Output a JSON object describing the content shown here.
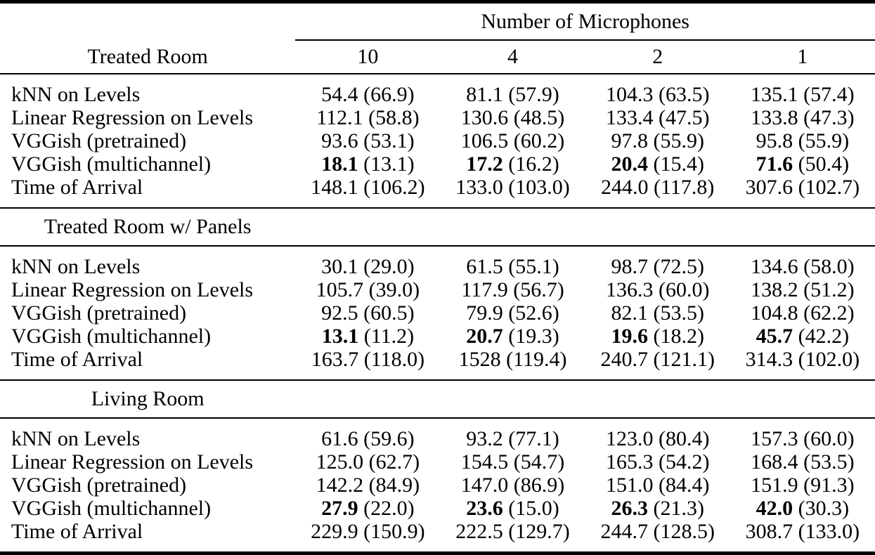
{
  "page": {
    "background_color": "#ffffff",
    "text_color": "#000000"
  },
  "table": {
    "group_header": "Number of Microphones",
    "corner_header": "Treated Room",
    "mic_columns": [
      "10",
      "4",
      "2",
      "1"
    ],
    "value_format": "mean (std)",
    "sections": [
      {
        "title": null,
        "rows": [
          {
            "method": "kNN on Levels",
            "bold": false,
            "cells": [
              {
                "mean": "54.4",
                "std": "66.9"
              },
              {
                "mean": "81.1",
                "std": "57.9"
              },
              {
                "mean": "104.3",
                "std": "63.5"
              },
              {
                "mean": "135.1",
                "std": "57.4"
              }
            ]
          },
          {
            "method": "Linear Regression on Levels",
            "bold": false,
            "cells": [
              {
                "mean": "112.1",
                "std": "58.8"
              },
              {
                "mean": "130.6",
                "std": "48.5"
              },
              {
                "mean": "133.4",
                "std": "47.5"
              },
              {
                "mean": "133.8",
                "std": "47.3"
              }
            ]
          },
          {
            "method": "VGGish (pretrained)",
            "bold": false,
            "cells": [
              {
                "mean": "93.6",
                "std": "53.1"
              },
              {
                "mean": "106.5",
                "std": "60.2"
              },
              {
                "mean": "97.8",
                "std": "55.9"
              },
              {
                "mean": "95.8",
                "std": "55.9"
              }
            ]
          },
          {
            "method": "VGGish (multichannel)",
            "bold": true,
            "cells": [
              {
                "mean": "18.1",
                "std": "13.1"
              },
              {
                "mean": "17.2",
                "std": "16.2"
              },
              {
                "mean": "20.4",
                "std": "15.4"
              },
              {
                "mean": "71.6",
                "std": "50.4"
              }
            ]
          },
          {
            "method": "Time of Arrival",
            "bold": false,
            "cells": [
              {
                "mean": "148.1",
                "std": "106.2"
              },
              {
                "mean": "133.0",
                "std": "103.0"
              },
              {
                "mean": "244.0",
                "std": "117.8"
              },
              {
                "mean": "307.6",
                "std": "102.7"
              }
            ]
          }
        ]
      },
      {
        "title": "Treated Room w/ Panels",
        "rows": [
          {
            "method": "kNN on Levels",
            "bold": false,
            "cells": [
              {
                "mean": "30.1",
                "std": "29.0"
              },
              {
                "mean": "61.5",
                "std": "55.1"
              },
              {
                "mean": "98.7",
                "std": "72.5"
              },
              {
                "mean": "134.6",
                "std": "58.0"
              }
            ]
          },
          {
            "method": "Linear Regression on Levels",
            "bold": false,
            "cells": [
              {
                "mean": "105.7",
                "std": "39.0"
              },
              {
                "mean": "117.9",
                "std": "56.7"
              },
              {
                "mean": "136.3",
                "std": "60.0"
              },
              {
                "mean": "138.2",
                "std": "51.2"
              }
            ]
          },
          {
            "method": "VGGish (pretrained)",
            "bold": false,
            "cells": [
              {
                "mean": "92.5",
                "std": "60.5"
              },
              {
                "mean": "79.9",
                "std": "52.6"
              },
              {
                "mean": "82.1",
                "std": "53.5"
              },
              {
                "mean": "104.8",
                "std": "62.2"
              }
            ]
          },
          {
            "method": "VGGish (multichannel)",
            "bold": true,
            "cells": [
              {
                "mean": "13.1",
                "std": "11.2"
              },
              {
                "mean": "20.7",
                "std": "19.3"
              },
              {
                "mean": "19.6",
                "std": "18.2"
              },
              {
                "mean": "45.7",
                "std": "42.2"
              }
            ]
          },
          {
            "method": "Time of Arrival",
            "bold": false,
            "cells": [
              {
                "mean": "163.7",
                "std": "118.0"
              },
              {
                "mean": "1528",
                "std": "119.4"
              },
              {
                "mean": "240.7",
                "std": "121.1"
              },
              {
                "mean": "314.3",
                "std": "102.0"
              }
            ]
          }
        ]
      },
      {
        "title": "Living Room",
        "rows": [
          {
            "method": "kNN on Levels",
            "bold": false,
            "cells": [
              {
                "mean": "61.6",
                "std": "59.6"
              },
              {
                "mean": "93.2",
                "std": "77.1"
              },
              {
                "mean": "123.0",
                "std": "80.4"
              },
              {
                "mean": "157.3",
                "std": "60.0"
              }
            ]
          },
          {
            "method": "Linear Regression on Levels",
            "bold": false,
            "cells": [
              {
                "mean": "125.0",
                "std": "62.7"
              },
              {
                "mean": "154.5",
                "std": "54.7"
              },
              {
                "mean": "165.3",
                "std": "54.2"
              },
              {
                "mean": "168.4",
                "std": "53.5"
              }
            ]
          },
          {
            "method": "VGGish (pretrained)",
            "bold": false,
            "cells": [
              {
                "mean": "142.2",
                "std": "84.9"
              },
              {
                "mean": "147.0",
                "std": "86.9"
              },
              {
                "mean": "151.0",
                "std": "84.4"
              },
              {
                "mean": "151.9",
                "std": "91.3"
              }
            ]
          },
          {
            "method": "VGGish (multichannel)",
            "bold": true,
            "cells": [
              {
                "mean": "27.9",
                "std": "22.0"
              },
              {
                "mean": "23.6",
                "std": "15.0"
              },
              {
                "mean": "26.3",
                "std": "21.3"
              },
              {
                "mean": "42.0",
                "std": "30.3"
              }
            ]
          },
          {
            "method": "Time of Arrival",
            "bold": false,
            "cells": [
              {
                "mean": "229.9",
                "std": "150.9"
              },
              {
                "mean": "222.5",
                "std": "129.7"
              },
              {
                "mean": "244.7",
                "std": "128.5"
              },
              {
                "mean": "308.7",
                "std": "133.0"
              }
            ]
          }
        ]
      }
    ]
  }
}
